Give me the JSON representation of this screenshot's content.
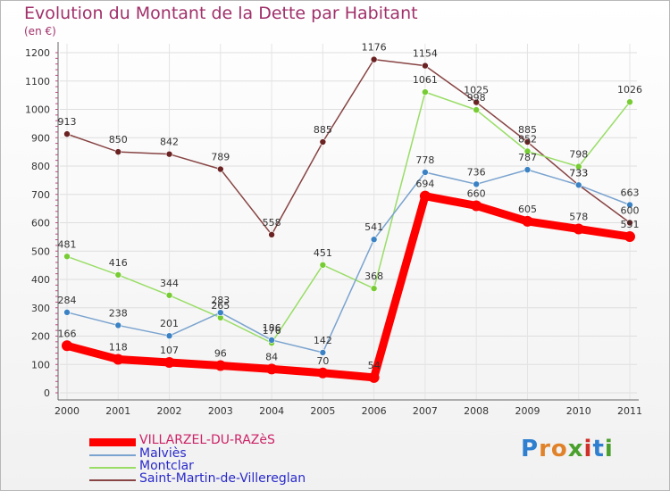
{
  "title": "Evolution du Montant de la Dette par Habitant",
  "subtitle": "(en €)",
  "logo": "Proxiti",
  "chart_data": {
    "type": "line",
    "title": "Evolution du Montant de la Dette par Habitant",
    "ylabel": "(en €)",
    "xlabel": "",
    "x": [
      "2000",
      "2001",
      "2002",
      "2003",
      "2004",
      "2005",
      "2006",
      "2007",
      "2008",
      "2009",
      "2010",
      "2011"
    ],
    "ylim": [
      0,
      1200
    ],
    "yticks": [
      0,
      100,
      200,
      300,
      400,
      500,
      600,
      700,
      800,
      900,
      1000,
      1100,
      1200
    ],
    "grid": true,
    "legend_position": "bottom",
    "series": [
      {
        "name": "VILLARZEL-DU-RAZèS",
        "color": "#ff0000",
        "marker_color": "#ff0000",
        "values": [
          166,
          118,
          107,
          96,
          84,
          70,
          54,
          694,
          660,
          605,
          578,
          551
        ]
      },
      {
        "name": "Malviès",
        "color": "#7aa3cf",
        "marker_color": "#3a82c4",
        "values": [
          284,
          238,
          201,
          283,
          186,
          142,
          541,
          778,
          736,
          787,
          733,
          663
        ]
      },
      {
        "name": "Montclar",
        "color": "#99dd66",
        "marker_color": "#77cc33",
        "values": [
          481,
          416,
          344,
          265,
          176,
          451,
          368,
          1061,
          998,
          852,
          798,
          1026
        ]
      },
      {
        "name": "Saint-Martin-de-Villereglan",
        "color": "#884444",
        "marker_color": "#6a2222",
        "values": [
          913,
          850,
          842,
          789,
          558,
          885,
          1176,
          1154,
          1025,
          885,
          733,
          600
        ]
      }
    ]
  }
}
